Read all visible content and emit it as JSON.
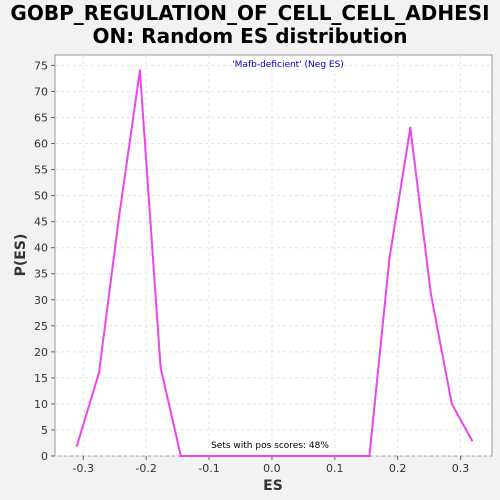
{
  "chart_data": {
    "type": "line",
    "title": "GOBP_REGULATION_OF_CELL_CELL_ADHESI\nON: Random ES distribution",
    "xlabel": "ES",
    "ylabel": "P(ES)",
    "xlim": [
      -0.345,
      0.35
    ],
    "ylim": [
      0,
      77
    ],
    "xticks": [
      -0.3,
      -0.2,
      -0.1,
      0.0,
      0.1,
      0.2,
      0.3
    ],
    "xtick_labels": [
      "-0.3",
      "-0.2",
      "-0.1",
      "0.0",
      "0.1",
      "0.2",
      "0.3"
    ],
    "yticks": [
      0,
      5,
      10,
      15,
      20,
      25,
      30,
      35,
      40,
      45,
      50,
      55,
      60,
      65,
      70,
      75
    ],
    "grid": true,
    "annotations": {
      "top": "'Mafb-deficient' (Neg ES)",
      "bottom": "Sets with pos scores: 48%"
    },
    "series": [
      {
        "color": "#ee44ee",
        "x": [
          -0.31,
          -0.275,
          -0.243,
          -0.21,
          -0.177,
          -0.145,
          0.155,
          0.187,
          0.22,
          0.253,
          0.286,
          0.318
        ],
        "y": [
          2,
          16,
          46,
          74,
          17,
          0,
          0,
          38,
          63,
          31,
          10,
          3
        ]
      }
    ]
  }
}
